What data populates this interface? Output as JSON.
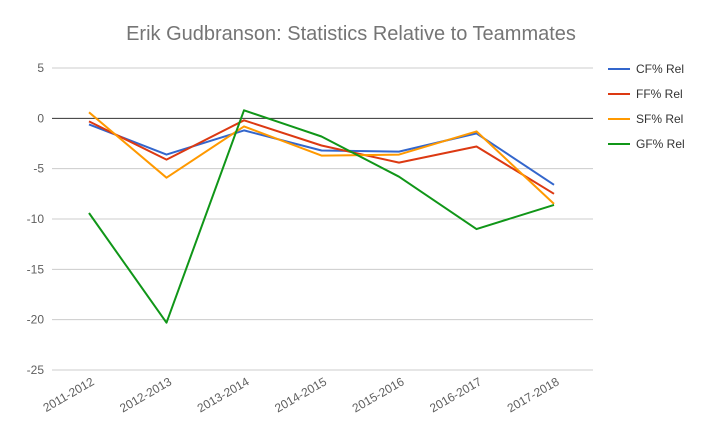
{
  "chart_data": {
    "type": "line",
    "title": "Erik Gudbranson: Statistics Relative to Teammates",
    "xlabel": "",
    "ylabel": "",
    "categories": [
      "2011-2012",
      "2012-2013",
      "2013-2014",
      "2014-2015",
      "2015-2016",
      "2016-2017",
      "2017-2018"
    ],
    "ylim": [
      -25,
      5
    ],
    "yticks": [
      5,
      0,
      -5,
      -10,
      -15,
      -20,
      -25
    ],
    "grid": true,
    "legend_position": "right",
    "series": [
      {
        "name": "CF% Rel",
        "color": "#3366cc",
        "values": [
          -0.6,
          -3.6,
          -1.2,
          -3.2,
          -3.3,
          -1.5,
          -6.6
        ]
      },
      {
        "name": "FF% Rel",
        "color": "#dc3912",
        "values": [
          -0.3,
          -4.1,
          -0.2,
          -2.7,
          -4.4,
          -2.8,
          -7.5
        ]
      },
      {
        "name": "SF% Rel",
        "color": "#ff9900",
        "values": [
          0.6,
          -5.9,
          -0.8,
          -3.7,
          -3.6,
          -1.3,
          -8.5
        ]
      },
      {
        "name": "GF% Rel",
        "color": "#109618",
        "values": [
          -9.4,
          -20.3,
          0.8,
          -1.8,
          -5.8,
          -11.0,
          -8.6
        ]
      }
    ]
  }
}
